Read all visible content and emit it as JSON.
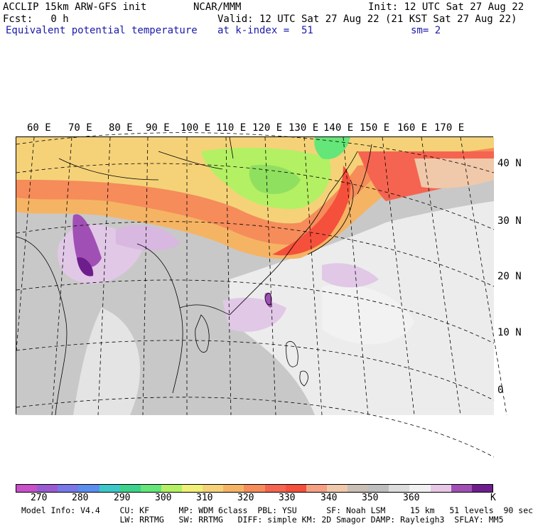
{
  "header": {
    "left1": "ACCLIP 15km ARW-GFS init",
    "left2": "Fcst:   0 h",
    "left3": "Equivalent potential temperature",
    "center1": "NCAR/MMM",
    "right1": "Init: 12 UTC Sat 27 Aug 22",
    "right2": "Valid: 12 UTC Sat 27 Aug 22 (21 KST Sat 27 Aug 22)",
    "right3a": "at k-index =  51",
    "right3b": "sm= 2"
  },
  "lon_labels": [
    "60 E",
    "70 E",
    "80 E",
    "90 E",
    "100 E",
    "110 E",
    "120 E",
    "130 E",
    "140 E",
    "150 E",
    "160 E",
    "170 E"
  ],
  "lat_labels": [
    "40 N",
    "30 N",
    "20 N",
    "10 N",
    "0"
  ],
  "colorbar": {
    "colors": [
      "#c850c8",
      "#9a5ad2",
      "#7878e8",
      "#5a8ef0",
      "#3cc8c8",
      "#3cd28c",
      "#64e678",
      "#b4f064",
      "#f0f078",
      "#f5d278",
      "#f5b464",
      "#f58c5a",
      "#f56450",
      "#f5503c",
      "#f5a082",
      "#f0c8aa",
      "#c8bfb5",
      "#bebebe",
      "#dcdcdc",
      "#f0f0f0",
      "#e6c8e6",
      "#a050b4",
      "#6e1e8c"
    ],
    "labels": [
      "270",
      "280",
      "290",
      "300",
      "310",
      "320",
      "330",
      "340",
      "350",
      "360"
    ],
    "unit": "K"
  },
  "footer": {
    "line1": "Model Info: V4.4    CU: KF      MP: WDM 6class  PBL: YSU      SF: Noah LSM     15 km   51 levels  90 sec",
    "line2": "                    LW: RRTMG   SW: RRTMG   DIFF: simple KM: 2D Smagor DAMP: Rayleigh3  SFLAY: MM5"
  }
}
